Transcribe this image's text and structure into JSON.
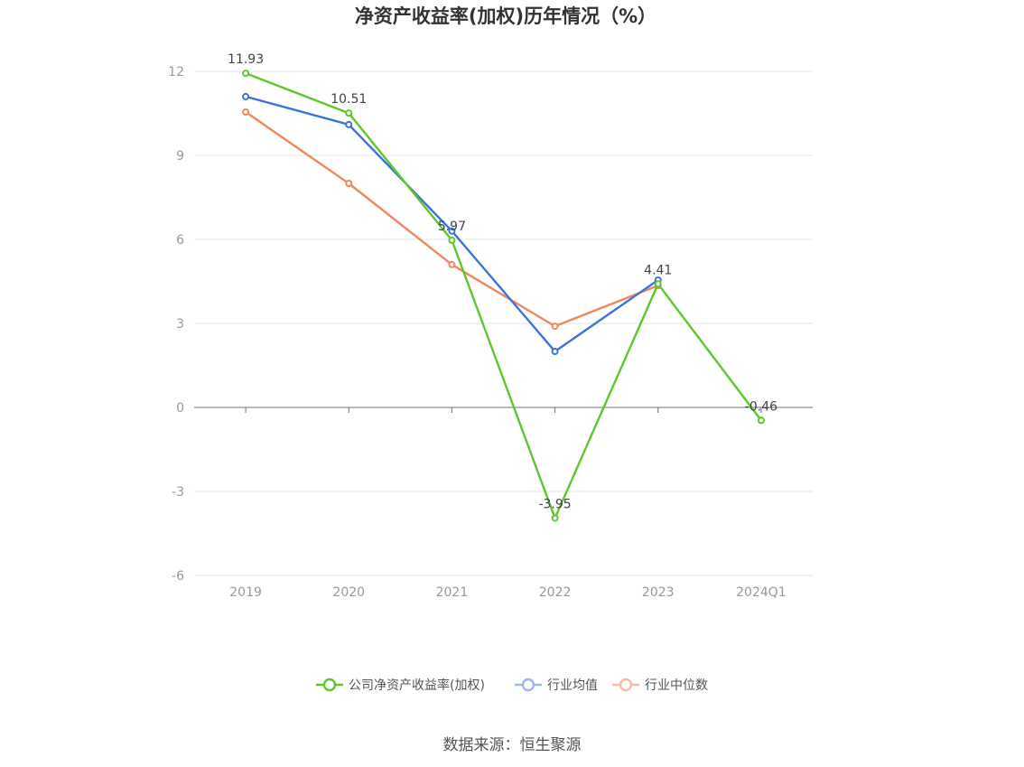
{
  "chart_data": {
    "type": "line",
    "title": "净资产收益率(加权)历年情况（%）",
    "categories": [
      "2019",
      "2020",
      "2021",
      "2022",
      "2023",
      "2024Q1"
    ],
    "ylim": [
      -6,
      12
    ],
    "yticks": [
      "12",
      "9",
      "6",
      "3",
      "0",
      "-3",
      "-6"
    ],
    "series": [
      {
        "name": "公司净资产收益率(加权)",
        "color": "#5dc72d",
        "values": [
          11.93,
          10.51,
          5.97,
          -3.95,
          4.41,
          -0.46
        ],
        "labels": [
          "11.93",
          "10.51",
          "5.97",
          "-3.95",
          "4.41",
          "-0.46"
        ]
      },
      {
        "name": "行业均值",
        "color": "#3a73d9",
        "legend_color": "#9bb8ee",
        "values": [
          11.1,
          10.1,
          6.3,
          2.0,
          4.55,
          null
        ]
      },
      {
        "name": "行业中位数",
        "color": "#f0875a",
        "legend_color": "#f7bda4",
        "values": [
          10.55,
          8.0,
          5.1,
          2.9,
          4.35,
          null
        ]
      }
    ],
    "grid": true,
    "legend_position": "bottom"
  },
  "source": "数据来源：恒生聚源"
}
